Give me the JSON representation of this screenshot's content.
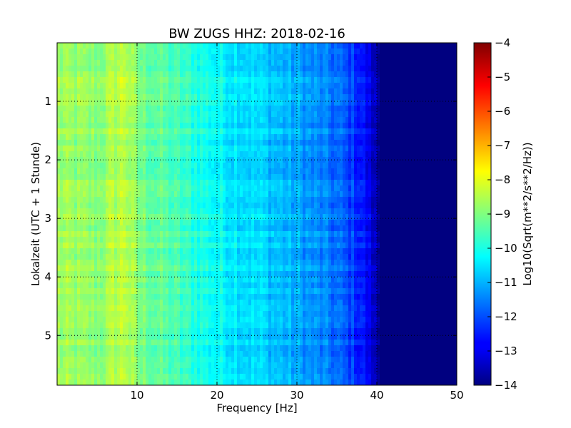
{
  "chart_data": {
    "type": "heatmap",
    "title": "BW ZUGS HHZ: 2018-02-16",
    "xlabel": "Frequency [Hz]",
    "ylabel": "Lokalzeit (UTC + 1 Stunde)",
    "xlim": [
      0,
      50
    ],
    "ylim": [
      0,
      5.85
    ],
    "y_inverted": true,
    "x_ticks": [
      10,
      20,
      30,
      40,
      50
    ],
    "y_ticks": [
      1,
      2,
      3,
      4,
      5
    ],
    "grid": true,
    "colormap": "jet",
    "colorbar": {
      "label": "Log10(Sqrt(m**2/s**2/Hz))",
      "min": -14,
      "max": -4,
      "ticks": [
        -14,
        -13,
        -12,
        -11,
        -10,
        -9,
        -8,
        -7,
        -6,
        -5,
        -4
      ]
    },
    "profile": {
      "frequency_hz": [
        0,
        5,
        8.5,
        10,
        15,
        20,
        25,
        30,
        35,
        38,
        39.5,
        40.5,
        45,
        50
      ],
      "level": [
        -8.7,
        -8.9,
        -8.3,
        -9.0,
        -9.6,
        -10.2,
        -10.6,
        -11.1,
        -11.7,
        -12.4,
        -13.2,
        -14,
        -14,
        -14
      ]
    }
  }
}
